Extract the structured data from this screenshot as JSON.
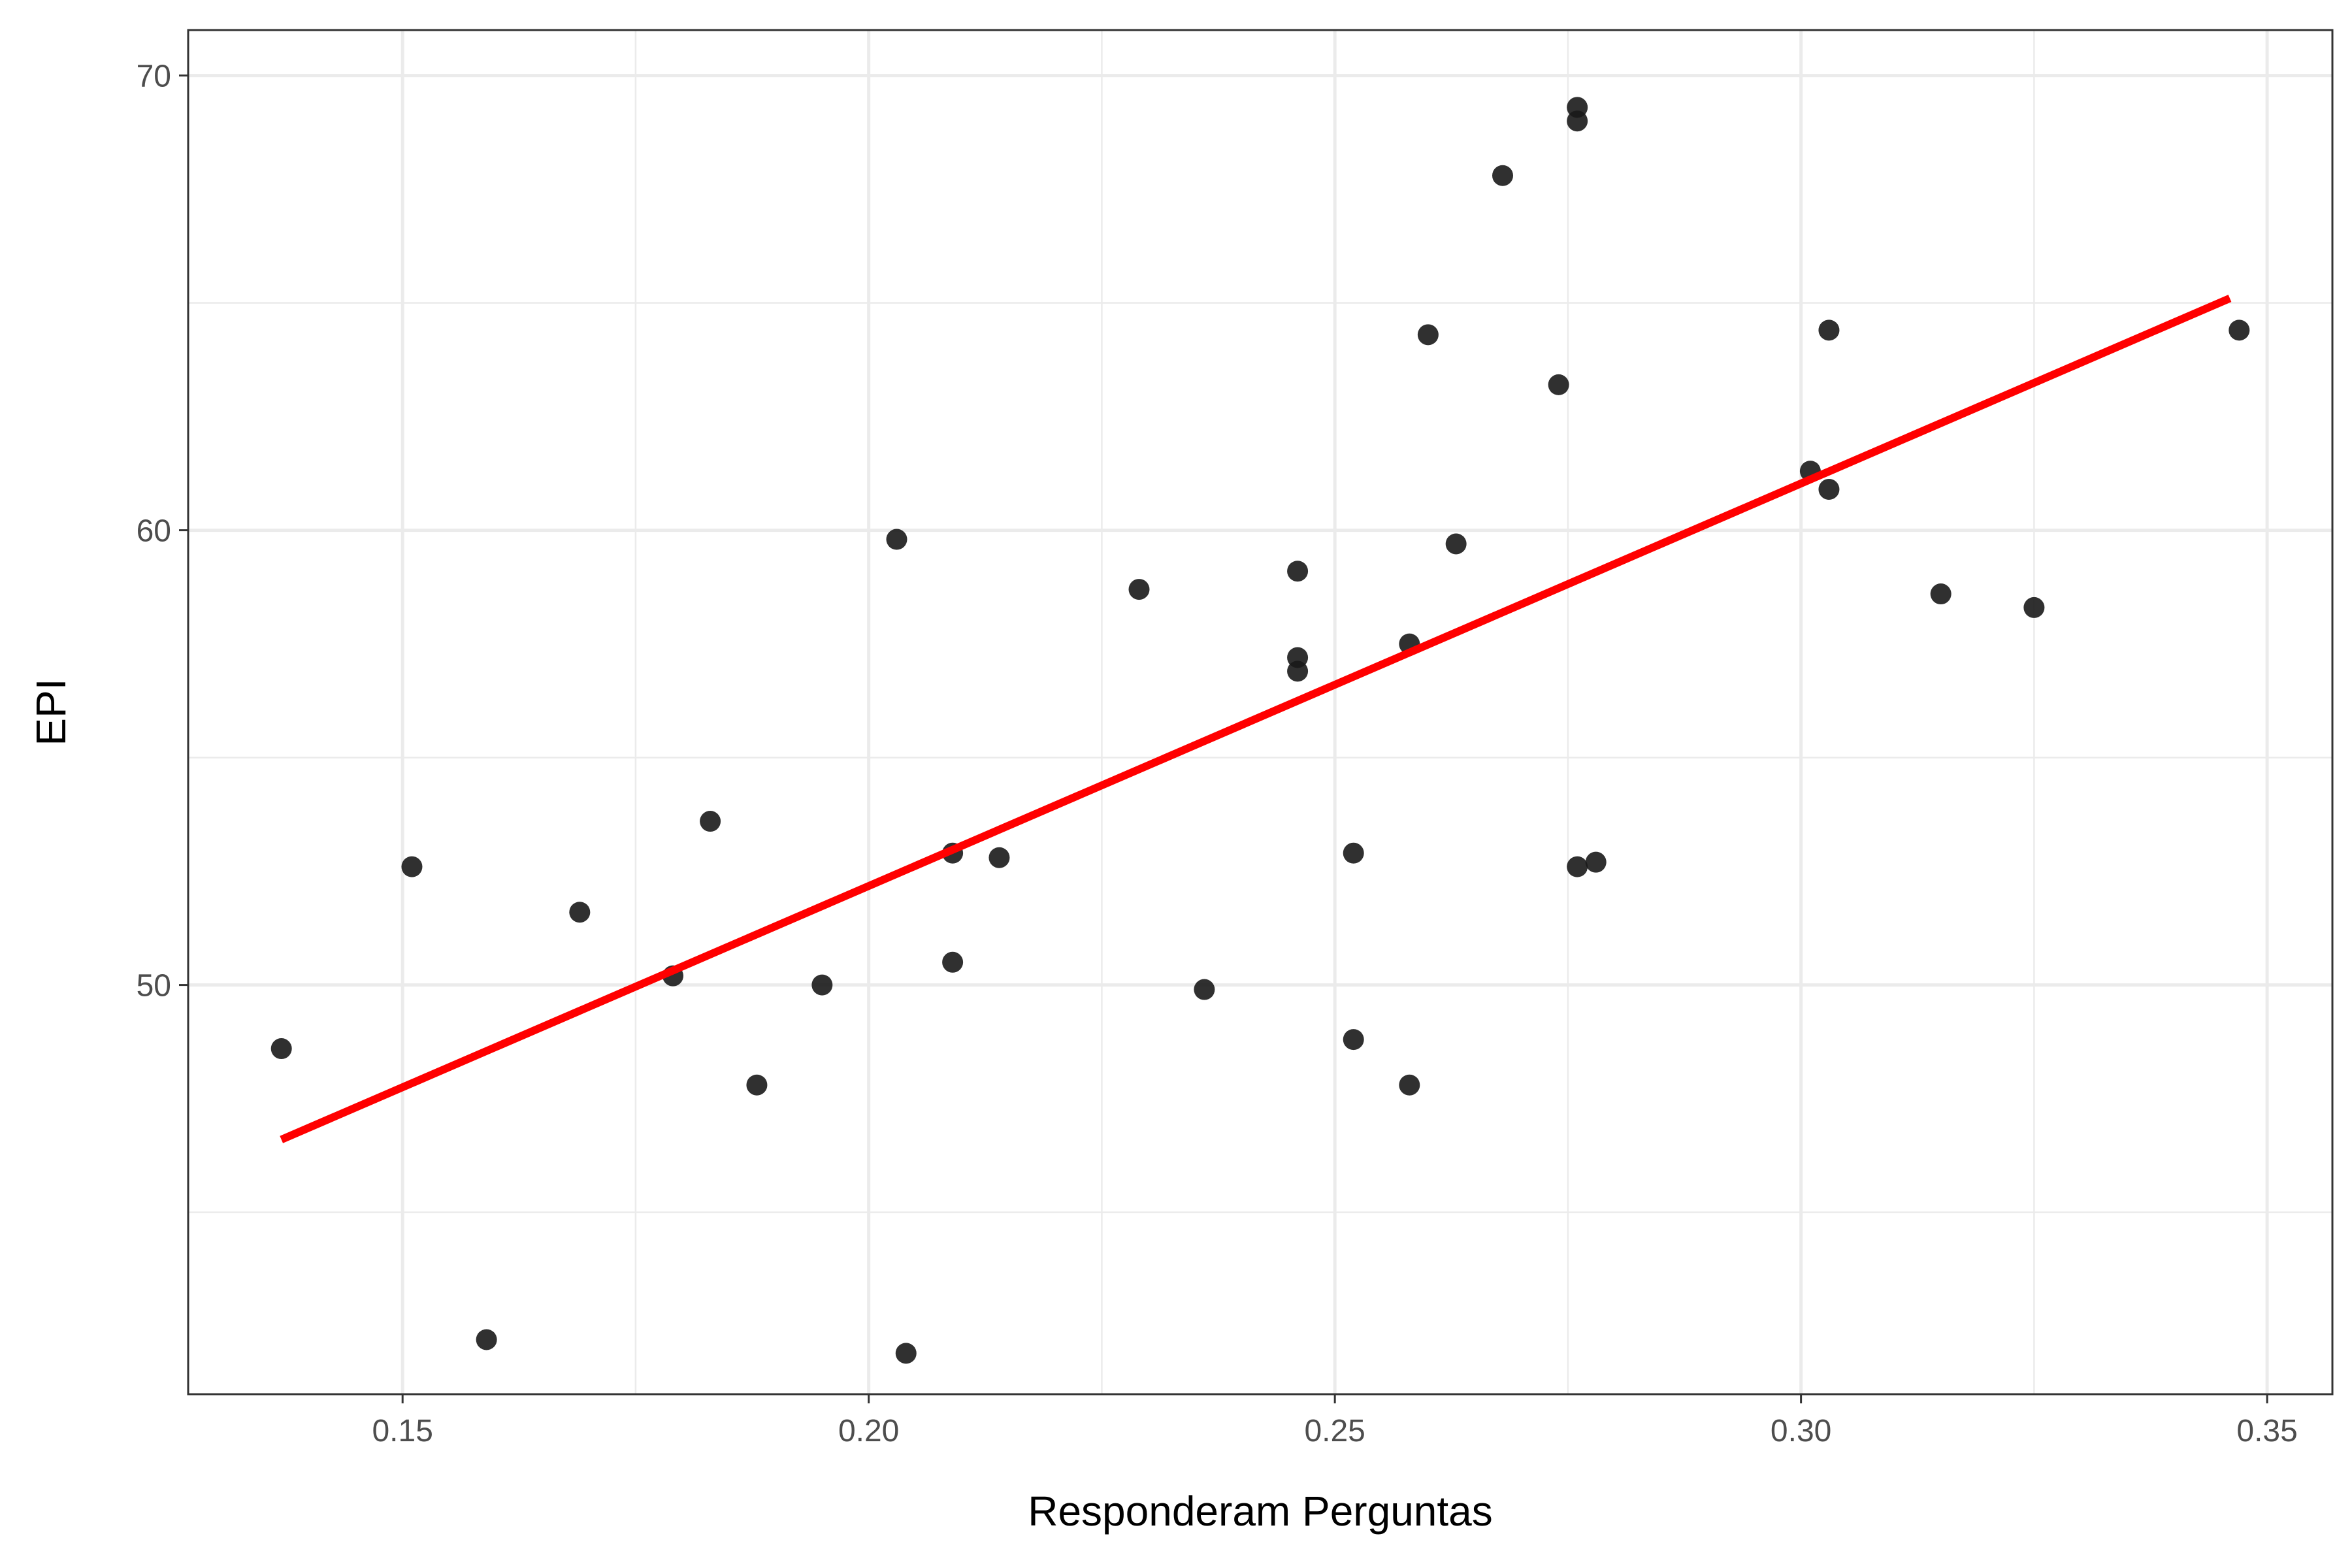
{
  "chart_data": {
    "type": "scatter",
    "title": "",
    "xlabel": "Responderam Perguntas",
    "ylabel": "EPI",
    "xlim": [
      0.127,
      0.357
    ],
    "ylim": [
      41.0,
      71.0
    ],
    "x_ticks": [
      {
        "value": 0.15,
        "label": "0.15"
      },
      {
        "value": 0.2,
        "label": "0.20"
      },
      {
        "value": 0.25,
        "label": "0.25"
      },
      {
        "value": 0.3,
        "label": "0.30"
      },
      {
        "value": 0.35,
        "label": "0.35"
      }
    ],
    "x_minor_ticks": [
      0.175,
      0.225,
      0.275,
      0.325
    ],
    "y_ticks": [
      {
        "value": 50,
        "label": "50"
      },
      {
        "value": 60,
        "label": "60"
      },
      {
        "value": 70,
        "label": "70"
      }
    ],
    "y_minor_ticks": [
      45,
      55,
      65
    ],
    "grid": true,
    "points": [
      {
        "x": 0.137,
        "y": 48.6
      },
      {
        "x": 0.151,
        "y": 52.6
      },
      {
        "x": 0.159,
        "y": 42.2
      },
      {
        "x": 0.169,
        "y": 51.6
      },
      {
        "x": 0.179,
        "y": 50.2
      },
      {
        "x": 0.183,
        "y": 53.6
      },
      {
        "x": 0.188,
        "y": 47.8
      },
      {
        "x": 0.195,
        "y": 50.0
      },
      {
        "x": 0.203,
        "y": 59.8
      },
      {
        "x": 0.204,
        "y": 41.9
      },
      {
        "x": 0.209,
        "y": 52.9
      },
      {
        "x": 0.209,
        "y": 50.5
      },
      {
        "x": 0.214,
        "y": 52.8
      },
      {
        "x": 0.229,
        "y": 58.7
      },
      {
        "x": 0.236,
        "y": 49.9
      },
      {
        "x": 0.246,
        "y": 59.1
      },
      {
        "x": 0.246,
        "y": 57.2
      },
      {
        "x": 0.246,
        "y": 56.9
      },
      {
        "x": 0.252,
        "y": 52.9
      },
      {
        "x": 0.252,
        "y": 48.8
      },
      {
        "x": 0.258,
        "y": 57.5
      },
      {
        "x": 0.258,
        "y": 47.8
      },
      {
        "x": 0.26,
        "y": 64.3
      },
      {
        "x": 0.263,
        "y": 59.7
      },
      {
        "x": 0.268,
        "y": 67.8
      },
      {
        "x": 0.274,
        "y": 63.2
      },
      {
        "x": 0.276,
        "y": 69.3
      },
      {
        "x": 0.276,
        "y": 69.0
      },
      {
        "x": 0.276,
        "y": 52.6
      },
      {
        "x": 0.278,
        "y": 52.7
      },
      {
        "x": 0.301,
        "y": 61.3
      },
      {
        "x": 0.303,
        "y": 64.4
      },
      {
        "x": 0.303,
        "y": 60.9
      },
      {
        "x": 0.315,
        "y": 58.6
      },
      {
        "x": 0.325,
        "y": 58.3
      },
      {
        "x": 0.347,
        "y": 64.4
      }
    ],
    "fit_line": {
      "x": [
        0.137,
        0.346
      ],
      "y": [
        46.6,
        65.1
      ]
    },
    "colors": {
      "points": "#1a1a1a",
      "fit_line": "#ff0000",
      "grid": "#ebebeb",
      "panel_border": "#333333",
      "background": "#ffffff"
    }
  }
}
